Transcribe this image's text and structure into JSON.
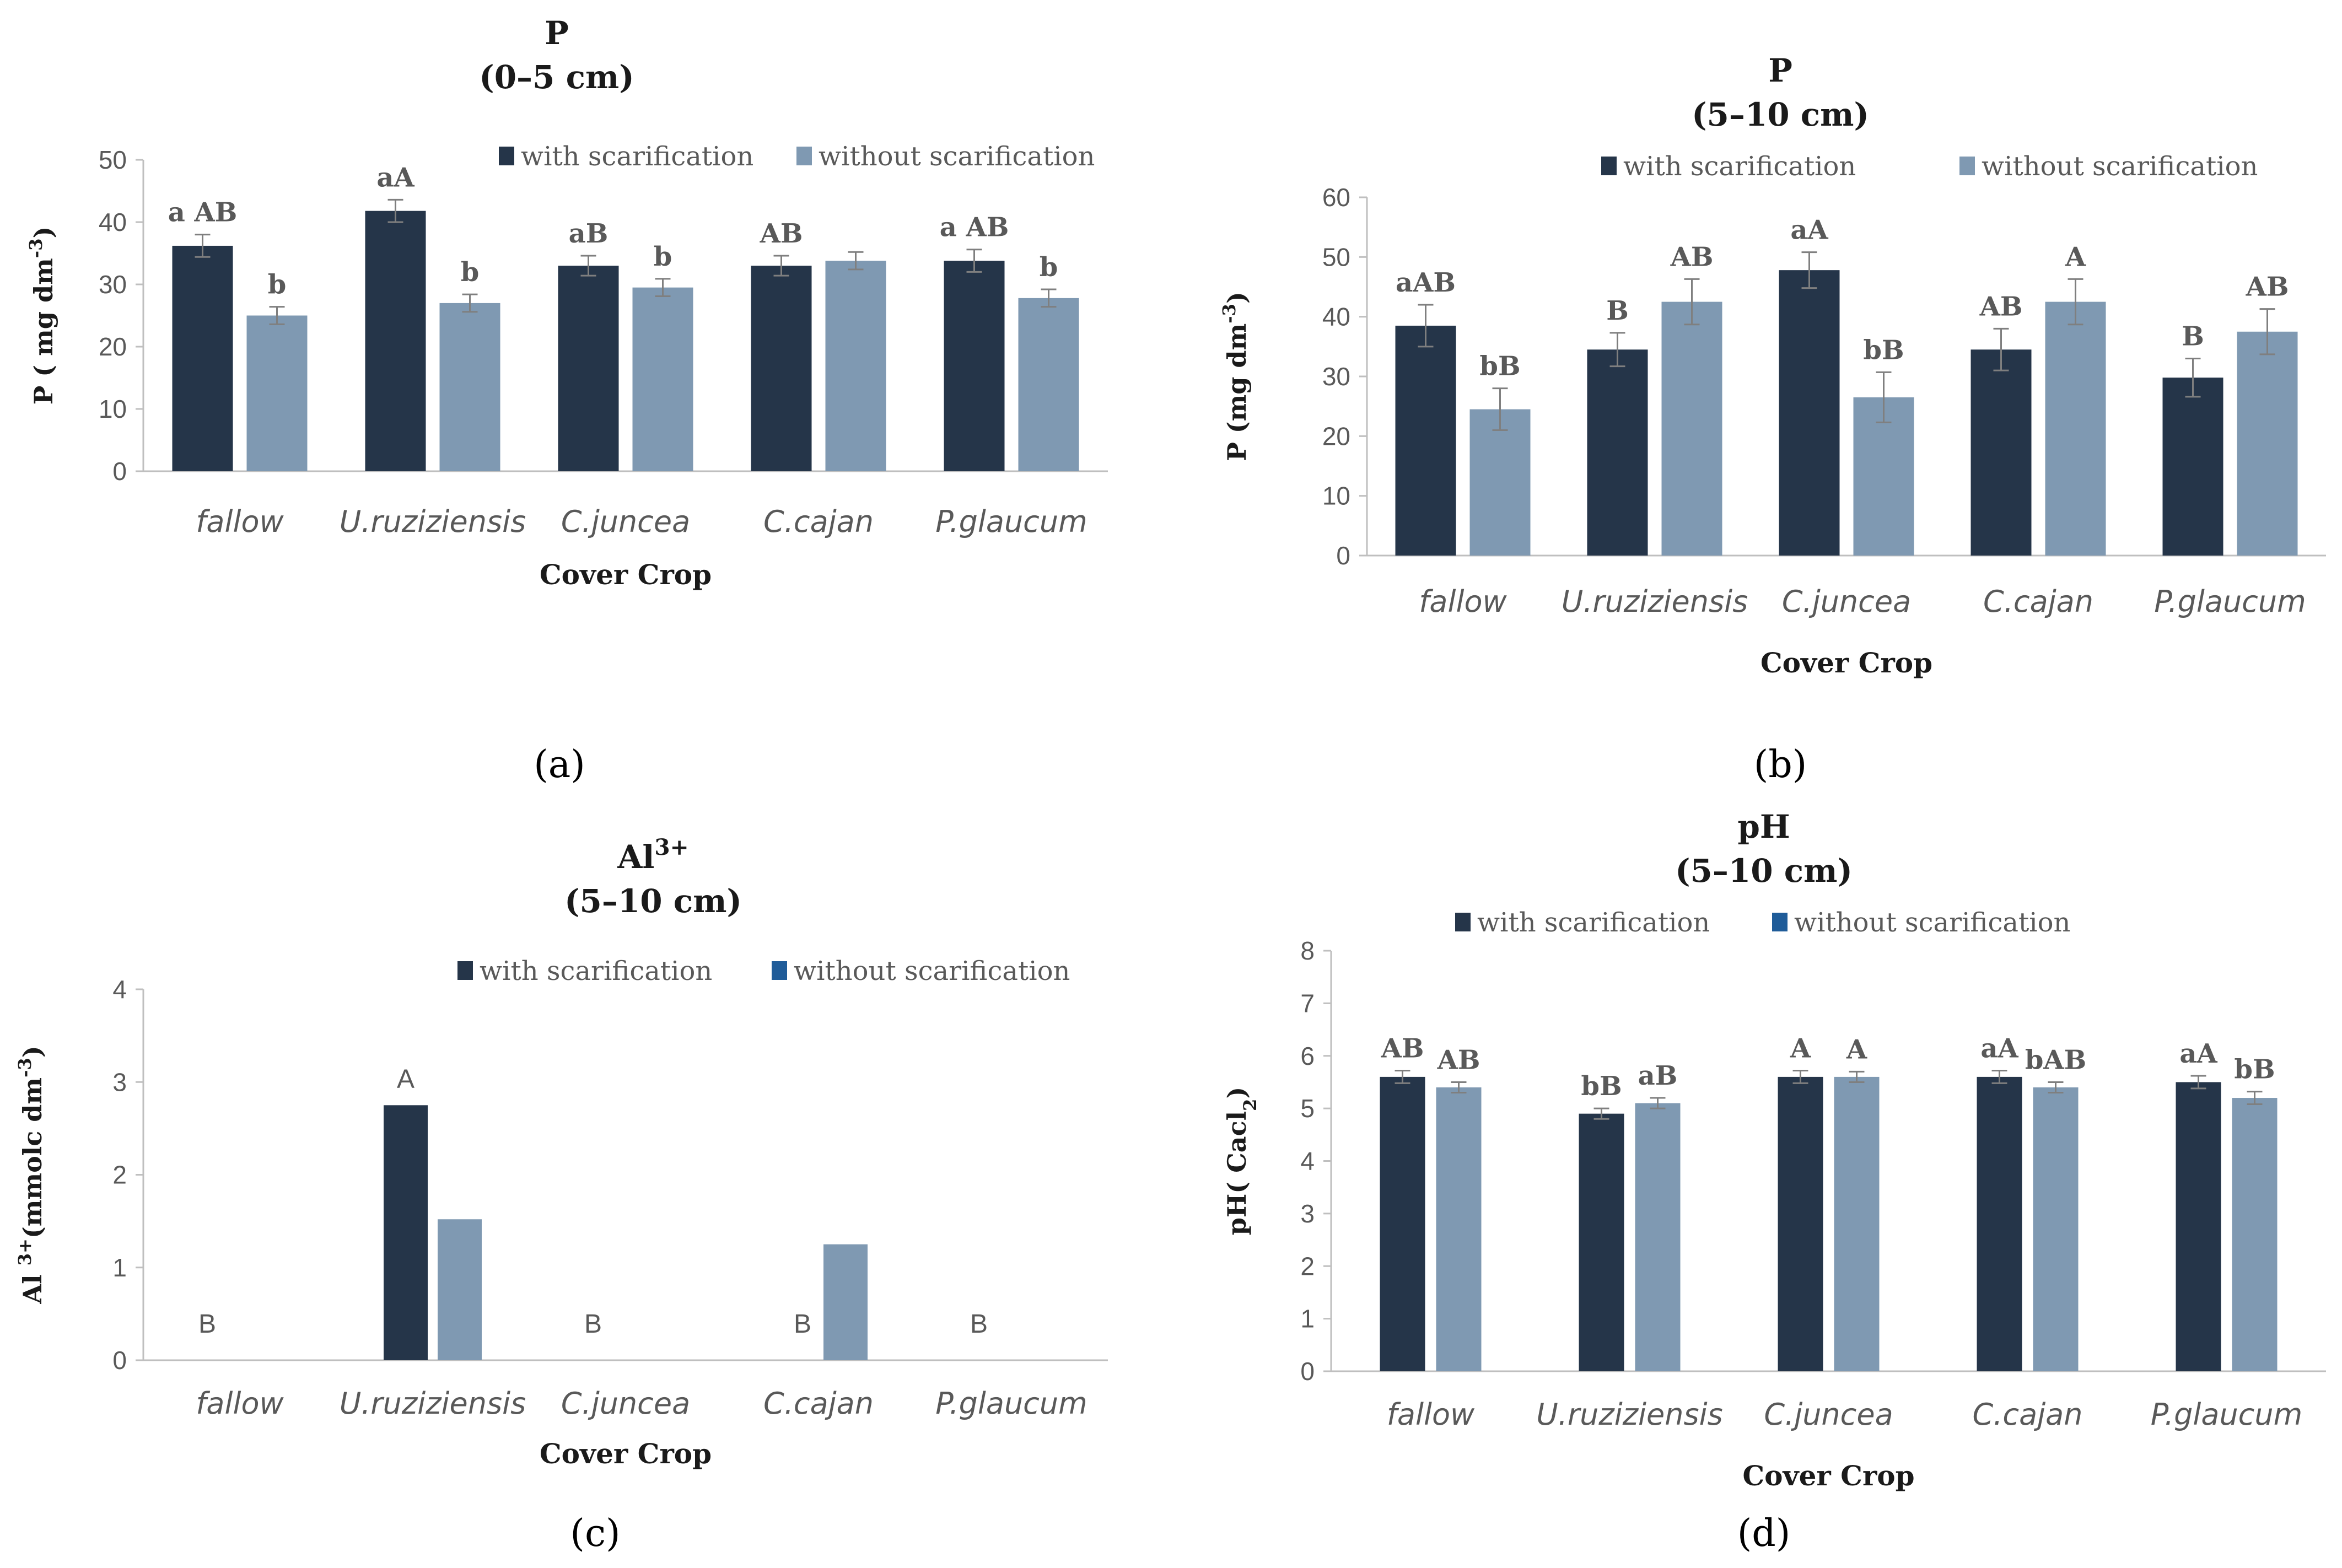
{
  "colors": {
    "with": "#253549",
    "without": "#7f99b2",
    "without_legend_c": "#1f5c99",
    "without_legend_d": "#1f5c99"
  },
  "chart_data": [
    {
      "id": "a",
      "type": "bar",
      "panel_label": "(a)",
      "title": [
        "P",
        "(0–5 cm)"
      ],
      "xlabel": "Cover Crop",
      "ylabel": "P ( mg dm-3)",
      "ylim": [
        0,
        50
      ],
      "yticks": [
        0,
        10,
        20,
        30,
        40,
        50
      ],
      "categories": [
        "fallow",
        "U.ruziziensis",
        "C.juncea",
        "C.cajan",
        "P.glaucum"
      ],
      "series": [
        {
          "name": "with scarification",
          "values": [
            36.2,
            41.8,
            33.0,
            33.0,
            33.8
          ],
          "errors": [
            1.8,
            1.8,
            1.6,
            1.6,
            1.8
          ],
          "labels": [
            "a AB",
            "aA",
            "aB",
            "AB",
            "a AB"
          ]
        },
        {
          "name": "without scarification",
          "values": [
            25.0,
            27.0,
            29.5,
            33.8,
            27.8
          ],
          "errors": [
            1.4,
            1.4,
            1.4,
            1.4,
            1.4
          ],
          "labels": [
            "b",
            "b",
            "b",
            "",
            "b"
          ]
        }
      ]
    },
    {
      "id": "b",
      "type": "bar",
      "panel_label": "(b)",
      "title": [
        "P",
        "(5–10 cm)"
      ],
      "xlabel": "Cover Crop",
      "ylabel": "P (mg dm-3)",
      "ylim": [
        0,
        60
      ],
      "yticks": [
        0,
        10,
        20,
        30,
        40,
        50,
        60
      ],
      "categories": [
        "fallow",
        "U.ruziziensis",
        "C.juncea",
        "C.cajan",
        "P.glaucum"
      ],
      "series": [
        {
          "name": "with scarification",
          "values": [
            38.5,
            34.5,
            47.8,
            34.5,
            29.8
          ],
          "errors": [
            3.5,
            2.8,
            3.0,
            3.5,
            3.2
          ],
          "labels": [
            "aAB",
            "B",
            "aA",
            "AB",
            "B"
          ]
        },
        {
          "name": "without scarification",
          "values": [
            24.5,
            42.5,
            26.5,
            42.5,
            37.5
          ],
          "errors": [
            3.5,
            3.8,
            4.2,
            3.8,
            3.8
          ],
          "labels": [
            "bB",
            "AB",
            "bB",
            "A",
            "AB"
          ]
        }
      ]
    },
    {
      "id": "c",
      "type": "bar",
      "panel_label": "(c)",
      "title": [
        "Al3+",
        "(5–10 cm)"
      ],
      "xlabel": "Cover Crop",
      "ylabel": "Al 3+(mmolc dm-3)",
      "ylim": [
        0,
        4
      ],
      "yticks": [
        0,
        1,
        2,
        3,
        4
      ],
      "categories": [
        "fallow",
        "U.ruziziensis",
        "C.juncea",
        "C.cajan",
        "P.glaucum"
      ],
      "series": [
        {
          "name": "with scarification",
          "values": [
            0,
            2.75,
            0,
            0,
            0
          ],
          "errors": [],
          "labels": [
            "B",
            "A",
            "B",
            "B",
            "B"
          ]
        },
        {
          "name": "without scarification",
          "values": [
            0,
            1.52,
            0,
            1.25,
            0
          ],
          "errors": [],
          "labels": [
            "",
            "",
            "",
            "",
            ""
          ]
        }
      ]
    },
    {
      "id": "d",
      "type": "bar",
      "panel_label": "(d)",
      "title": [
        "pH",
        "(5–10 cm)"
      ],
      "xlabel": "Cover Crop",
      "ylabel": "pH( Cacl2)",
      "ylim": [
        0,
        8
      ],
      "yticks": [
        0,
        1,
        2,
        3,
        4,
        5,
        6,
        7,
        8
      ],
      "categories": [
        "fallow",
        "U.ruziziensis",
        "C.juncea",
        "C.cajan",
        "P.glaucum"
      ],
      "series": [
        {
          "name": "with scarification",
          "values": [
            5.6,
            4.9,
            5.6,
            5.6,
            5.5
          ],
          "errors": [
            0.12,
            0.1,
            0.12,
            0.12,
            0.12
          ],
          "labels": [
            "AB",
            "bB",
            "A",
            "aA",
            "aA"
          ]
        },
        {
          "name": "without scarification",
          "values": [
            5.4,
            5.1,
            5.6,
            5.4,
            5.2
          ],
          "errors": [
            0.1,
            0.1,
            0.1,
            0.1,
            0.12
          ],
          "labels": [
            "AB",
            "aB",
            "A",
            "bAB",
            "bB"
          ]
        }
      ]
    }
  ]
}
